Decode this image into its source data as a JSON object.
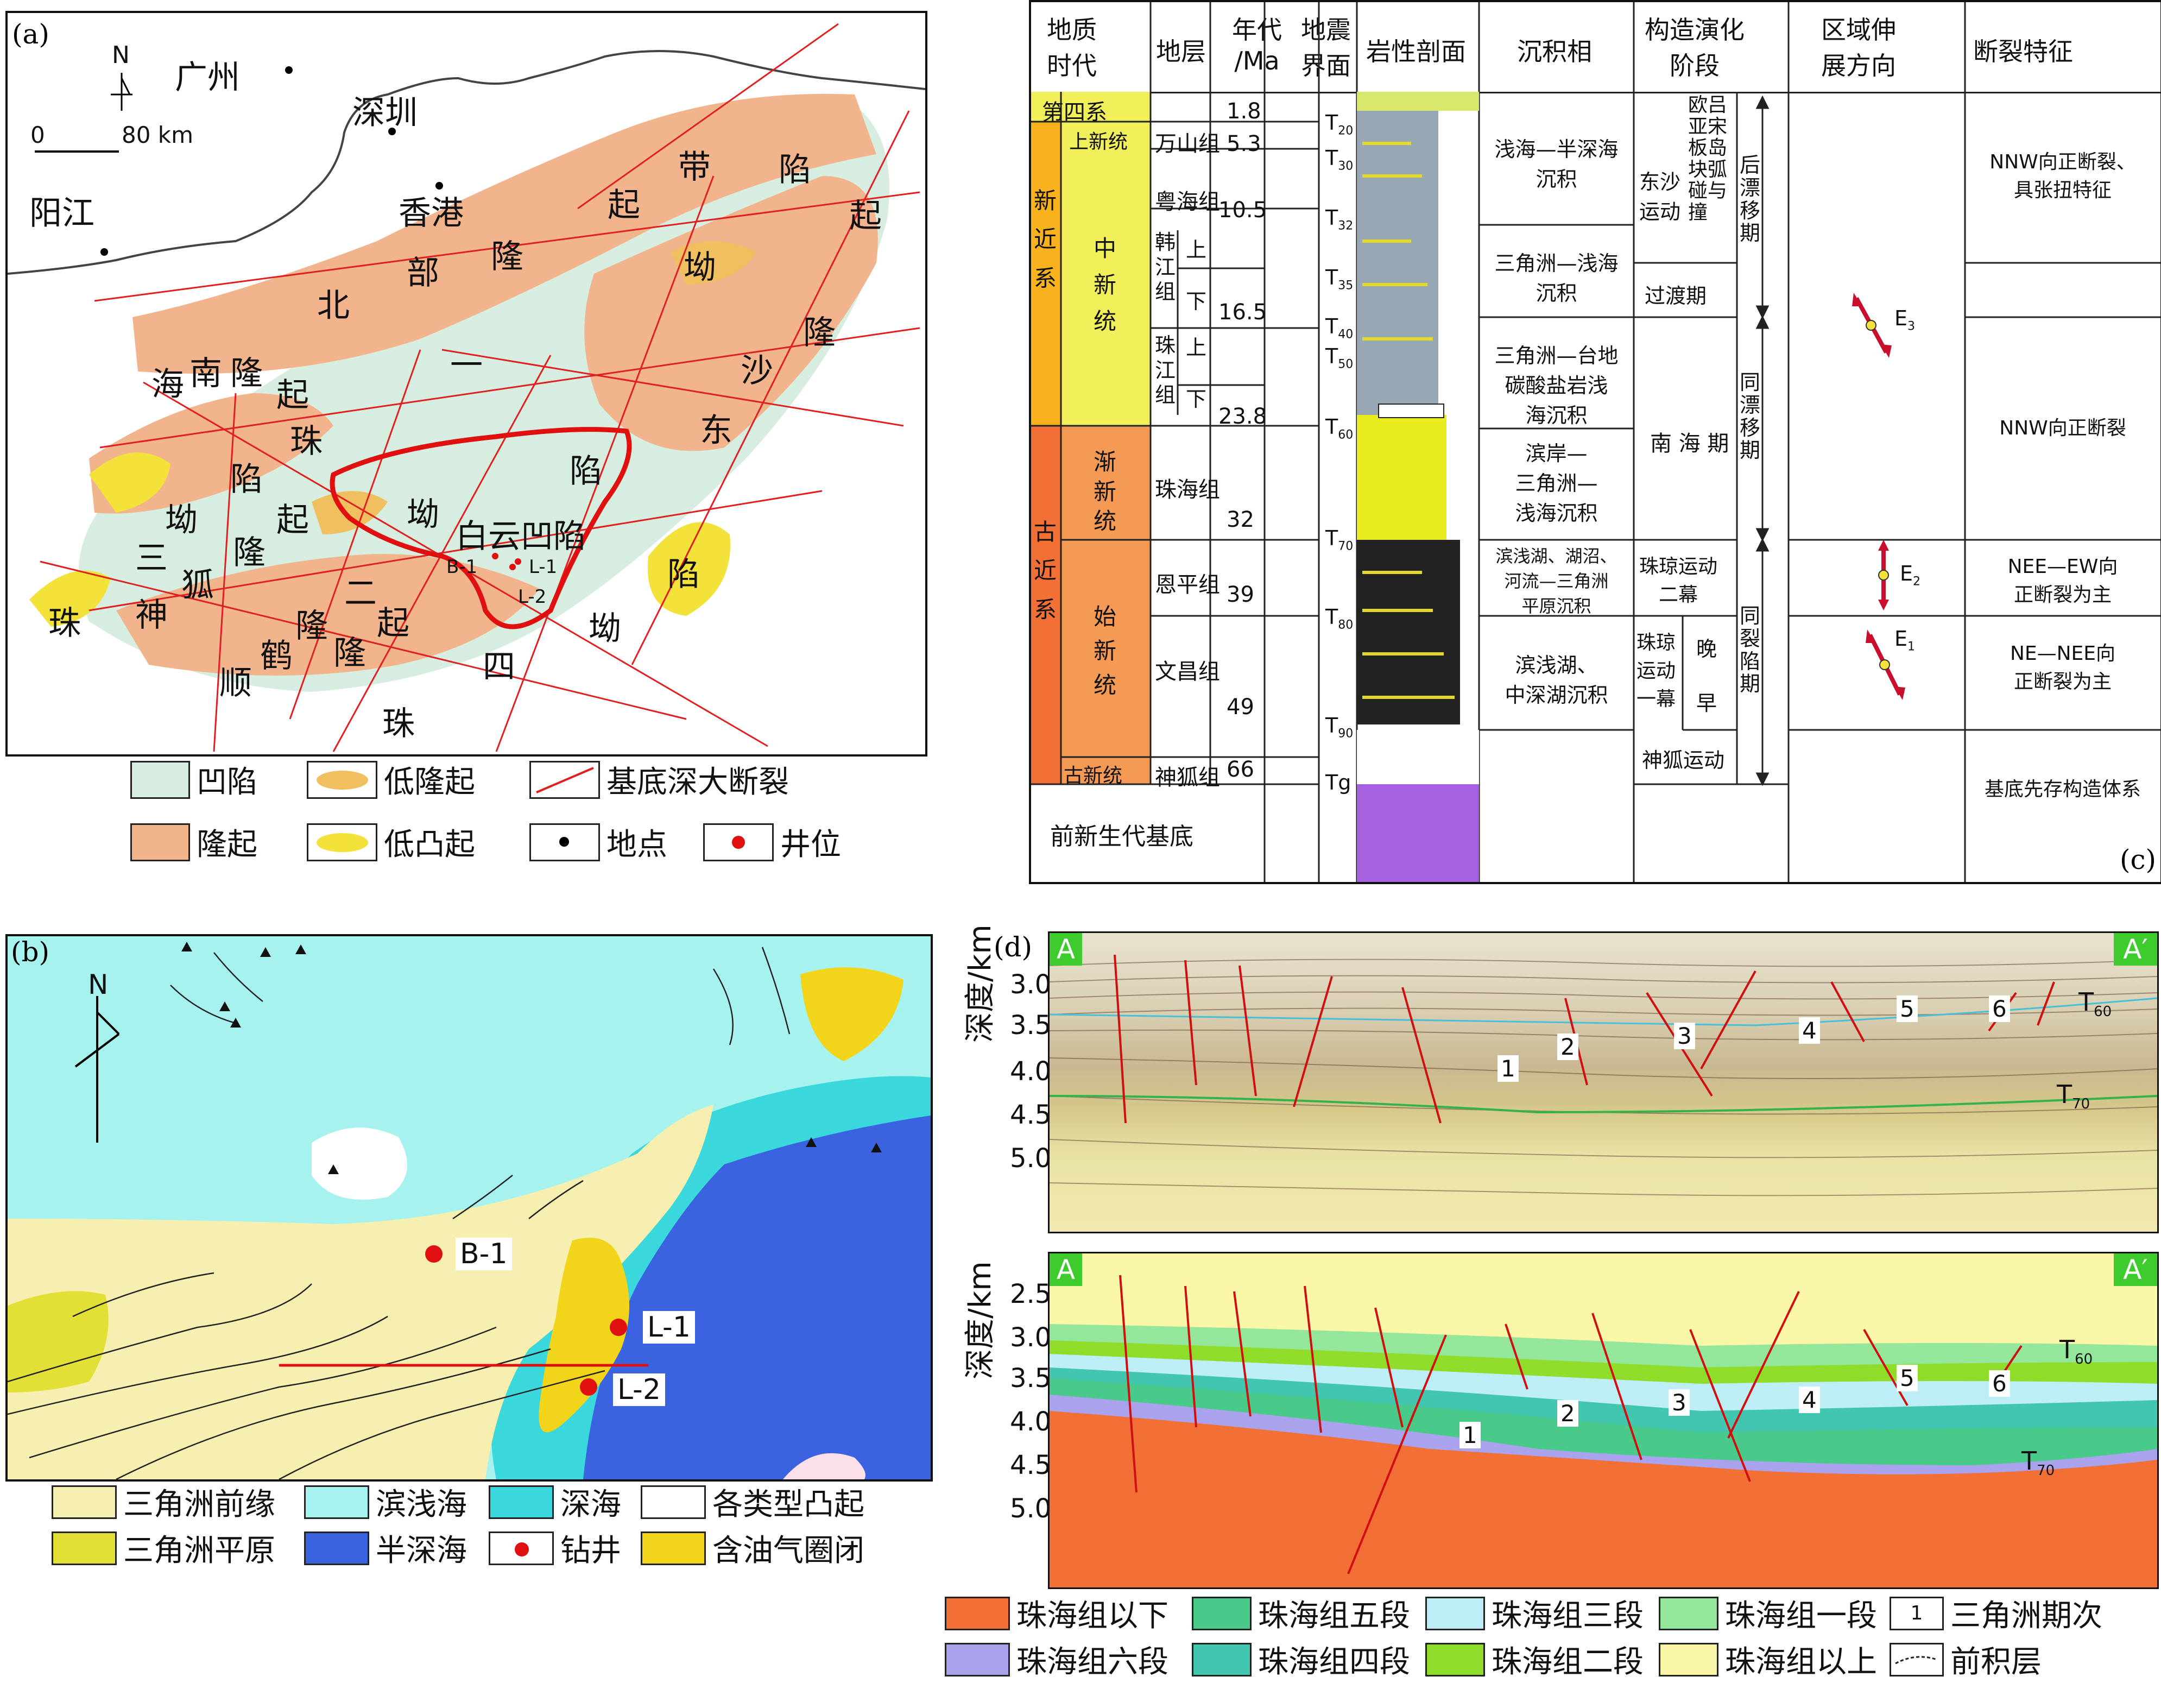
{
  "panel_a": {
    "tag": "(a)",
    "north": "N",
    "scale_start": "0",
    "scale_end": "80 km",
    "places": [
      "广州",
      "深圳",
      "香港",
      "阳江"
    ],
    "belts": {
      "north_uplift": [
        "北",
        "部",
        "隆",
        "起",
        "带"
      ],
      "zone1": [
        "一",
        "沙",
        "东",
        "隆",
        "起",
        "陷",
        "坳"
      ],
      "baiyun": "白云凹陷",
      "zone2": [
        "二",
        "起",
        "隆",
        "陷",
        "坳",
        "四"
      ],
      "zone3": [
        "珠",
        "三",
        "坳",
        "陷",
        "海",
        "南",
        "隆",
        "起",
        "神",
        "狐",
        "隆",
        "起"
      ],
      "south": [
        "珠",
        "顺",
        "鹤",
        "隆",
        "珠"
      ],
      "wells": [
        "B-1",
        "L-1",
        "L-2"
      ]
    },
    "legend": [
      {
        "label": "凹陷",
        "color": "#d6eddf"
      },
      {
        "label": "低隆起",
        "color": "#f0c060"
      },
      {
        "label": "基底深大断裂",
        "color": "#e02020"
      },
      {
        "label": "隆起",
        "color": "#f2b48c"
      },
      {
        "label": "低凸起",
        "color": "#f3e23a"
      },
      {
        "label": "地点",
        "color": "#000000"
      },
      {
        "label": "井位",
        "color": "#e01010"
      }
    ]
  },
  "panel_b": {
    "tag": "(b)",
    "north": "N",
    "wells": [
      "B-1",
      "L-1",
      "L-2"
    ],
    "legend": [
      {
        "label": "三角洲前缘",
        "color": "#f7efb0"
      },
      {
        "label": "滨浅海",
        "color": "#a6f2ee"
      },
      {
        "label": "深海",
        "color": "#3ad7dc"
      },
      {
        "label": "各类型凸起",
        "color": "#ffffff"
      },
      {
        "label": "三角洲平原",
        "color": "#e2df36"
      },
      {
        "label": "半深海",
        "color": "#3b63e0"
      },
      {
        "label": "钻井",
        "color": "#e01010"
      },
      {
        "label": "含油气圈闭",
        "color": "#f2d51a"
      }
    ]
  },
  "panel_c": {
    "tag": "(c)",
    "headers": [
      "地质\n时代",
      "地层",
      "年代\n/Ma",
      "地震\n界面",
      "岩性剖面",
      "沉积相",
      "构造演化\n阶段",
      "区域伸\n展方向",
      "断裂特征"
    ],
    "eras": {
      "quaternary": "第四系",
      "neogene": "新\n近\n系",
      "paleogene": "古\n近\n系",
      "basement": "前新生代基底"
    },
    "series": [
      "上新统",
      "中\n新\n统",
      "渐\n新\n统",
      "始\n新\n统",
      "古新统"
    ],
    "formations": [
      "万山组",
      "粤海组",
      "韩\n江\n组",
      "上",
      "下",
      "珠\n江\n组",
      "上",
      "下",
      "珠海组",
      "恩平组",
      "文昌组",
      "神狐组"
    ],
    "ages": [
      "1.8",
      "5.3",
      "10.5",
      "16.5",
      "23.8",
      "32",
      "39",
      "49",
      "66"
    ],
    "horizons": [
      {
        "T": "T",
        "sub": "20"
      },
      {
        "T": "T",
        "sub": "30"
      },
      {
        "T": "T",
        "sub": "32"
      },
      {
        "T": "T",
        "sub": "35"
      },
      {
        "T": "T",
        "sub": "40"
      },
      {
        "T": "T",
        "sub": "50"
      },
      {
        "T": "T",
        "sub": "60"
      },
      {
        "T": "T",
        "sub": "70"
      },
      {
        "T": "T",
        "sub": "80"
      },
      {
        "T": "T",
        "sub": "90"
      },
      {
        "T": "Tg",
        "sub": ""
      }
    ],
    "facies": [
      "浅海—半深海\n沉积",
      "三角洲—浅海\n沉积",
      "三角洲—台地\n碳酸盐岩浅\n海沉积",
      "滨岸—\n三角洲—\n浅海沉积",
      "滨浅湖、湖沼、\n河流—三角洲\n平原沉积",
      "滨浅湖、\n中深湖沉积"
    ],
    "tectonic": {
      "dongsha": "东沙\n运动",
      "collision": "欧吕\n亚宋\n板岛\n块弧\n碰与\n撞",
      "post_drift": "后\n漂\n移\n期",
      "transition": "过渡期",
      "south_sea": "南 海 期",
      "syn_drift": "同\n漂\n移\n期",
      "zhuqiong2": "珠琼运动\n二幕",
      "zhuqiong1": "珠琼\n运动\n一幕",
      "late": "晚",
      "early": "早",
      "syn_rift": "同\n裂\n陷\n期",
      "shenhu": "神狐运动"
    },
    "extension": [
      {
        "name": "E",
        "sub": "3"
      },
      {
        "name": "E",
        "sub": "2"
      },
      {
        "name": "E",
        "sub": "1"
      }
    ],
    "faults": [
      "NNW向正断裂、\n具张扭特征",
      "NNW向正断裂",
      "NEE—EW向\n正断裂为主",
      "NE—NEE向\n正断裂为主",
      "基底先存构造体系"
    ]
  },
  "panel_d": {
    "tag": "(d)",
    "a": "A",
    "a_prime": "A′",
    "ylabel": "深度/km",
    "top_ticks": [
      "3.0",
      "3.5",
      "4.0",
      "4.5",
      "5.0"
    ],
    "bottom_ticks": [
      "2.5",
      "3.0",
      "3.5",
      "4.0",
      "4.5",
      "5.0"
    ],
    "phases": [
      "1",
      "2",
      "3",
      "4",
      "5",
      "6"
    ],
    "t60": {
      "T": "T",
      "sub": "60"
    },
    "t70": {
      "T": "T",
      "sub": "70"
    },
    "legend": [
      {
        "label": "珠海组以下",
        "color": "#f26f35"
      },
      {
        "label": "珠海组五段",
        "color": "#49c98a"
      },
      {
        "label": "珠海组三段",
        "color": "#bdeef5"
      },
      {
        "label": "珠海组一段",
        "color": "#93e69a"
      },
      {
        "label": "三角洲期次",
        "color": "#ffffff",
        "num": "1"
      },
      {
        "label": "珠海组六段",
        "color": "#a9a2ec"
      },
      {
        "label": "珠海组四段",
        "color": "#43c6b0"
      },
      {
        "label": "珠海组二段",
        "color": "#8fdc2a"
      },
      {
        "label": "珠海组以上",
        "color": "#fbf7a8"
      },
      {
        "label": "前积层",
        "color": "#ffffff"
      }
    ]
  }
}
